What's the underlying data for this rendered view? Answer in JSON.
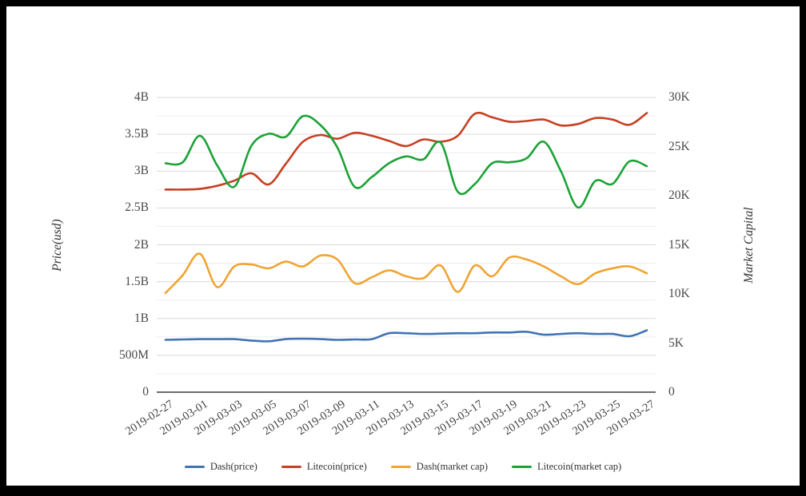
{
  "frame": {
    "border_color": "#000000",
    "background": "#ffffff"
  },
  "chart_data": {
    "type": "line",
    "title": "",
    "x_tick_labels": [
      "2019-02-27",
      "2019-03-01",
      "2019-03-03",
      "2019-03-05",
      "2019-03-07",
      "2019-03-09",
      "2019-03-11",
      "2019-03-13",
      "2019-03-15",
      "2019-03-17",
      "2019-03-19",
      "2019-03-21",
      "2019-03-23",
      "2019-03-25",
      "2019-03-27"
    ],
    "dates": [
      "2019-02-27",
      "2019-02-28",
      "2019-03-01",
      "2019-03-02",
      "2019-03-03",
      "2019-03-04",
      "2019-03-05",
      "2019-03-06",
      "2019-03-07",
      "2019-03-08",
      "2019-03-09",
      "2019-03-10",
      "2019-03-11",
      "2019-03-12",
      "2019-03-13",
      "2019-03-14",
      "2019-03-15",
      "2019-03-16",
      "2019-03-17",
      "2019-03-18",
      "2019-03-19",
      "2019-03-20",
      "2019-03-21",
      "2019-03-22",
      "2019-03-23",
      "2019-03-24",
      "2019-03-25",
      "2019-03-26",
      "2019-03-27"
    ],
    "left_axis": {
      "title": "Price(usd)",
      "tick_labels": [
        "0",
        "500M",
        "1B",
        "1.5B",
        "2B",
        "2.5B",
        "3B",
        "3.5B",
        "4B"
      ],
      "tick_values_billion": [
        0,
        0.5,
        1,
        1.5,
        2,
        2.5,
        3,
        3.5,
        4
      ],
      "range_billion": [
        0,
        4
      ]
    },
    "right_axis": {
      "title": "Market Capital",
      "tick_labels": [
        "0",
        "5K",
        "10K",
        "15K",
        "20K",
        "25K",
        "30K"
      ],
      "tick_values_k": [
        0,
        5,
        10,
        15,
        20,
        25,
        30
      ],
      "range_k": [
        0,
        30
      ]
    },
    "grid": {
      "minor_step_billion": 0.25,
      "minor_color": "#ededed",
      "major_color": "#d9d9d9",
      "axis_line_color": "#3c3c3c"
    },
    "legend_position": "bottom-center",
    "series": [
      {
        "name": "Dash(price)",
        "color": "#4173b3",
        "axis": "left",
        "unit": "billion_usd",
        "values": [
          0.71,
          0.715,
          0.72,
          0.72,
          0.72,
          0.7,
          0.69,
          0.72,
          0.725,
          0.72,
          0.71,
          0.715,
          0.72,
          0.8,
          0.8,
          0.79,
          0.795,
          0.8,
          0.8,
          0.81,
          0.81,
          0.82,
          0.78,
          0.79,
          0.8,
          0.79,
          0.79,
          0.76,
          0.84
        ]
      },
      {
        "name": "Litecoin(price)",
        "color": "#c74023",
        "axis": "left",
        "unit": "billion_usd",
        "values": [
          2.75,
          2.75,
          2.76,
          2.8,
          2.87,
          2.97,
          2.82,
          3.1,
          3.4,
          3.49,
          3.44,
          3.52,
          3.48,
          3.41,
          3.34,
          3.43,
          3.4,
          3.48,
          3.78,
          3.73,
          3.67,
          3.68,
          3.7,
          3.62,
          3.64,
          3.72,
          3.7,
          3.63,
          3.79
        ]
      },
      {
        "name": "Dash(market cap)",
        "color": "#f0a432",
        "axis": "right",
        "unit": "k",
        "values": [
          10.1,
          11.9,
          14.1,
          10.7,
          12.8,
          13.0,
          12.6,
          13.3,
          12.8,
          13.9,
          13.5,
          11.1,
          11.7,
          12.4,
          11.8,
          11.6,
          12.9,
          10.2,
          12.9,
          11.8,
          13.7,
          13.5,
          12.8,
          11.8,
          11.0,
          12.1,
          12.6,
          12.8,
          12.1
        ]
      },
      {
        "name": "Litecoin(market cap)",
        "color": "#1ca237",
        "axis": "right",
        "unit": "k",
        "values": [
          23.3,
          23.4,
          26.1,
          23.1,
          20.9,
          25.1,
          26.3,
          26.0,
          28.1,
          27.2,
          24.9,
          20.9,
          21.9,
          23.3,
          24.0,
          23.7,
          25.4,
          20.4,
          21.2,
          23.3,
          23.4,
          23.8,
          25.5,
          22.5,
          18.8,
          21.5,
          21.2,
          23.5,
          23.0
        ]
      }
    ]
  }
}
